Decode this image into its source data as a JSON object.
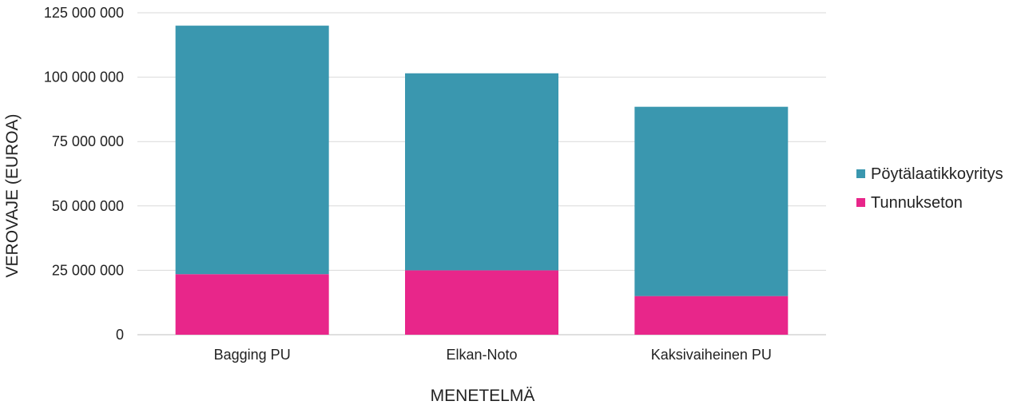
{
  "chart_data": {
    "type": "bar",
    "stacked": true,
    "categories": [
      "Bagging PU",
      "Elkan-Noto",
      "Kaksivaiheinen PU"
    ],
    "series": [
      {
        "name": "Tunnukseton",
        "color": "#E8268A",
        "values": [
          23500000,
          25000000,
          15000000
        ]
      },
      {
        "name": "Pöytälaatikkoyritys",
        "color": "#3A97AF",
        "values": [
          96500000,
          76500000,
          73500000
        ]
      }
    ],
    "xlabel": "MENETELMÄ",
    "ylabel": "VEROVAJE (EUROA)",
    "ylim": [
      0,
      125000000
    ],
    "yticks": [
      0,
      25000000,
      50000000,
      75000000,
      100000000,
      125000000
    ],
    "ytick_labels": [
      "0",
      "25 000 000",
      "50 000 000",
      "75 000 000",
      "100 000 000",
      "125 000 000"
    ],
    "grid": true,
    "legend_position": "right",
    "legend_order": [
      "Pöytälaatikkoyritys",
      "Tunnukseton"
    ]
  }
}
